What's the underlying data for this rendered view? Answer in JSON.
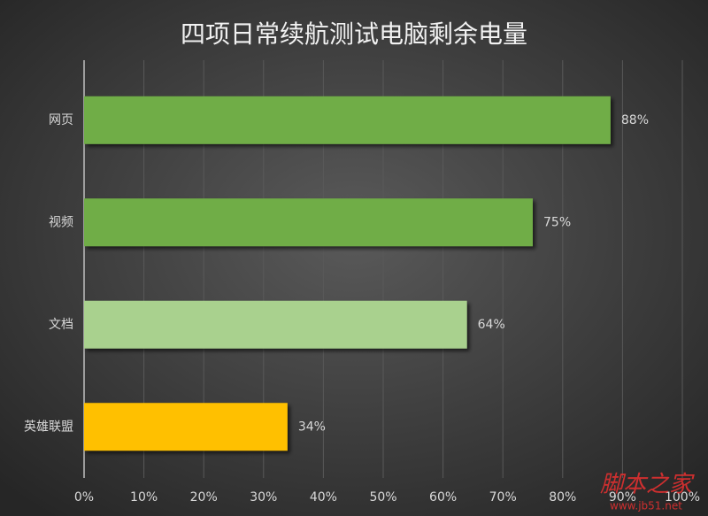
{
  "chart_data": {
    "type": "bar",
    "orientation": "horizontal",
    "title": "四项日常续航测试电脑剩余电量",
    "categories": [
      "网页",
      "视频",
      "文档",
      "英雄联盟"
    ],
    "values": [
      88,
      75,
      64,
      34
    ],
    "value_labels": [
      "88%",
      "75%",
      "64%",
      "34%"
    ],
    "colors": [
      "#70ad47",
      "#70ad47",
      "#a9d18e",
      "#ffc000"
    ],
    "xlim": [
      0,
      100
    ],
    "xticks": [
      {
        "value": 0,
        "label": "0%"
      },
      {
        "value": 10,
        "label": "10%"
      },
      {
        "value": 20,
        "label": "20%"
      },
      {
        "value": 30,
        "label": "30%"
      },
      {
        "value": 40,
        "label": "40%"
      },
      {
        "value": 50,
        "label": "50%"
      },
      {
        "value": 60,
        "label": "60%"
      },
      {
        "value": 70,
        "label": "70%"
      },
      {
        "value": 80,
        "label": "80%"
      },
      {
        "value": 90,
        "label": "90%"
      },
      {
        "value": 100,
        "label": "100%"
      }
    ],
    "grid": true,
    "watermark": [
      "脚本之家",
      "www.jb51.net"
    ]
  }
}
